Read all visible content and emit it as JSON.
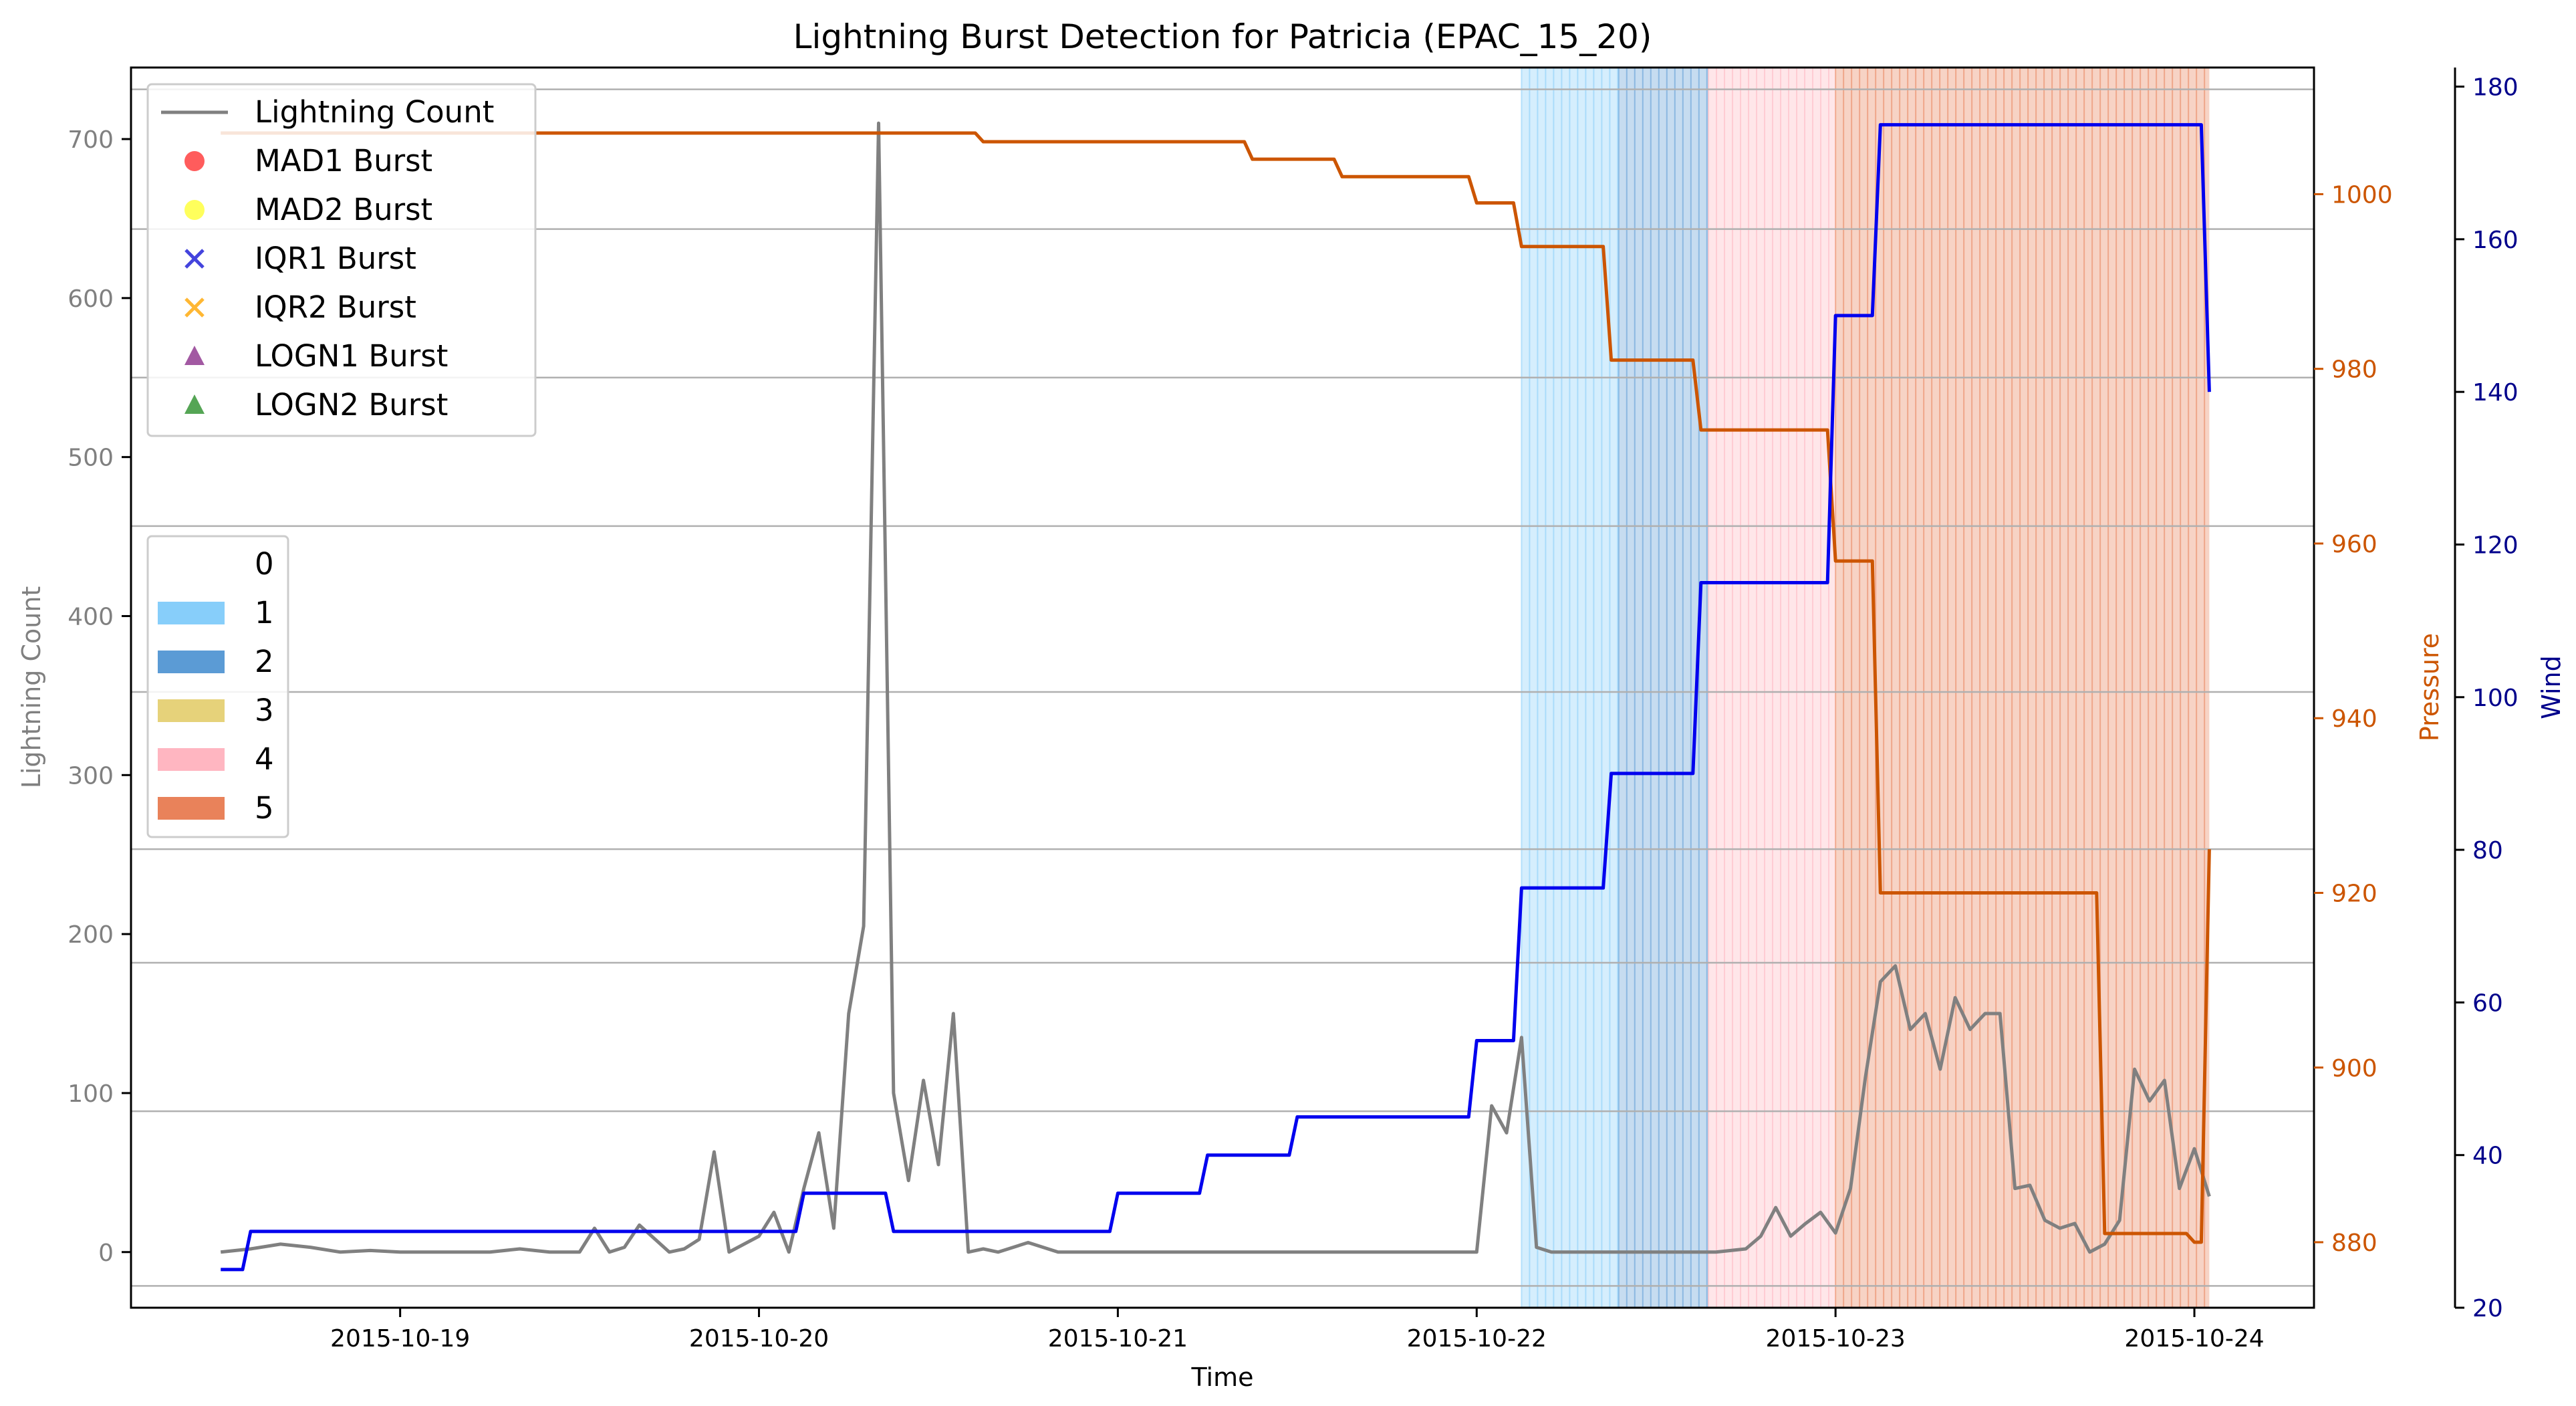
{
  "chart_data": {
    "type": "line",
    "title": "Lightning Burst Detection for Patricia (EPAC_15_20)",
    "xlabel": "Time",
    "ylabel_left": "Lightning Count",
    "ylabel_pressure": "Pressure",
    "ylabel_wind": "Wind",
    "x_range": [
      "2015-10-18 06:00",
      "2015-10-24 08:00"
    ],
    "x_ticks": [
      {
        "label": "2015-10-19",
        "value": "2015-10-19T00:00"
      },
      {
        "label": "2015-10-20",
        "value": "2015-10-20T00:00"
      },
      {
        "label": "2015-10-21",
        "value": "2015-10-21T00:00"
      },
      {
        "label": "2015-10-22",
        "value": "2015-10-22T00:00"
      },
      {
        "label": "2015-10-23",
        "value": "2015-10-23T00:00"
      },
      {
        "label": "2015-10-24",
        "value": "2015-10-24T00:00"
      }
    ],
    "left_axis": {
      "range": [
        -35,
        745
      ],
      "ticks": [
        0,
        100,
        200,
        300,
        400,
        500,
        600,
        700
      ]
    },
    "pressure_axis": {
      "range": [
        872.5,
        1014.5
      ],
      "ticks": [
        880,
        900,
        920,
        940,
        960,
        980,
        1000
      ]
    },
    "wind_axis": {
      "range": [
        20,
        182.5
      ],
      "ticks": [
        20,
        40,
        60,
        80,
        100,
        120,
        140,
        160,
        180
      ]
    },
    "grid_pressure": [
      875,
      895,
      912,
      925,
      943,
      962,
      979,
      996,
      1012
    ],
    "colors": {
      "lightning": "#808080",
      "pressure": "#cc5500",
      "wind": "#0000ee",
      "wind_axis": "#00008b",
      "cat1": "#87cefa",
      "cat2": "#5b9bd5",
      "cat3": "#e6d27a",
      "cat4": "#ffb6c1",
      "cat5": "#e9825a",
      "grid": "#b0b0b0"
    },
    "category_shading": [
      {
        "category": 1,
        "start": "2015-10-22T03:00",
        "end": "2015-10-22T09:30"
      },
      {
        "category": 2,
        "start": "2015-10-22T09:30",
        "end": "2015-10-22T15:30"
      },
      {
        "category": 4,
        "start": "2015-10-22T15:30",
        "end": "2015-10-23T00:00"
      },
      {
        "category": 5,
        "start": "2015-10-23T00:00",
        "end": "2015-10-24T01:00"
      }
    ],
    "legend_series": [
      {
        "label": "Lightning Count",
        "marker": "line",
        "color": "#808080"
      },
      {
        "label": "MAD1 Burst",
        "marker": "circle",
        "color": "#ff3333"
      },
      {
        "label": "MAD2 Burst",
        "marker": "circle",
        "color": "#ffff33"
      },
      {
        "label": "IQR1 Burst",
        "marker": "x",
        "color": "#4444dd"
      },
      {
        "label": "IQR2 Burst",
        "marker": "x",
        "color": "#ffb733"
      },
      {
        "label": "LOGN1 Burst",
        "marker": "triangle",
        "color": "#8b2f8b"
      },
      {
        "label": "LOGN2 Burst",
        "marker": "triangle",
        "color": "#2a8f2a"
      }
    ],
    "legend_categories": [
      {
        "label": "0",
        "color": "#ffffff"
      },
      {
        "label": "1",
        "color": "#87cefa"
      },
      {
        "label": "2",
        "color": "#5b9bd5"
      },
      {
        "label": "3",
        "color": "#e6d27a"
      },
      {
        "label": "4",
        "color": "#ffb6c1"
      },
      {
        "label": "5",
        "color": "#e9825a"
      }
    ],
    "series": [
      {
        "name": "Lightning Count",
        "axis": "left",
        "x": [
          "2015-10-18T12:00",
          "2015-10-18T14:00",
          "2015-10-18T16:00",
          "2015-10-18T18:00",
          "2015-10-18T20:00",
          "2015-10-18T22:00",
          "2015-10-19T00:00",
          "2015-10-19T02:00",
          "2015-10-19T04:00",
          "2015-10-19T06:00",
          "2015-10-19T08:00",
          "2015-10-19T10:00",
          "2015-10-19T12:00",
          "2015-10-19T13:00",
          "2015-10-19T14:00",
          "2015-10-19T15:00",
          "2015-10-19T16:00",
          "2015-10-19T18:00",
          "2015-10-19T19:00",
          "2015-10-19T20:00",
          "2015-10-19T21:00",
          "2015-10-19T22:00",
          "2015-10-20T00:00",
          "2015-10-20T01:00",
          "2015-10-20T02:00",
          "2015-10-20T03:00",
          "2015-10-20T04:00",
          "2015-10-20T05:00",
          "2015-10-20T06:00",
          "2015-10-20T07:00",
          "2015-10-20T08:00",
          "2015-10-20T09:00",
          "2015-10-20T10:00",
          "2015-10-20T11:00",
          "2015-10-20T12:00",
          "2015-10-20T13:00",
          "2015-10-20T14:00",
          "2015-10-20T15:00",
          "2015-10-20T16:00",
          "2015-10-20T18:00",
          "2015-10-20T20:00",
          "2015-10-21T00:00",
          "2015-10-21T06:00",
          "2015-10-21T12:00",
          "2015-10-21T18:00",
          "2015-10-22T00:00",
          "2015-10-22T01:00",
          "2015-10-22T02:00",
          "2015-10-22T03:00",
          "2015-10-22T04:00",
          "2015-10-22T05:00",
          "2015-10-22T08:00",
          "2015-10-22T12:00",
          "2015-10-22T16:00",
          "2015-10-22T18:00",
          "2015-10-22T19:00",
          "2015-10-22T20:00",
          "2015-10-22T21:00",
          "2015-10-22T22:00",
          "2015-10-22T23:00",
          "2015-10-23T00:00",
          "2015-10-23T01:00",
          "2015-10-23T02:00",
          "2015-10-23T03:00",
          "2015-10-23T04:00",
          "2015-10-23T05:00",
          "2015-10-23T06:00",
          "2015-10-23T07:00",
          "2015-10-23T08:00",
          "2015-10-23T09:00",
          "2015-10-23T10:00",
          "2015-10-23T11:00",
          "2015-10-23T12:00",
          "2015-10-23T13:00",
          "2015-10-23T14:00",
          "2015-10-23T15:00",
          "2015-10-23T16:00",
          "2015-10-23T17:00",
          "2015-10-23T18:00",
          "2015-10-23T19:00",
          "2015-10-23T20:00",
          "2015-10-23T21:00",
          "2015-10-23T22:00",
          "2015-10-23T23:00",
          "2015-10-24T00:00",
          "2015-10-24T01:00"
        ],
        "values": [
          0,
          2,
          5,
          3,
          0,
          1,
          0,
          0,
          0,
          0,
          2,
          0,
          0,
          15,
          0,
          3,
          17,
          0,
          2,
          8,
          63,
          0,
          10,
          25,
          0,
          40,
          75,
          15,
          150,
          205,
          710,
          100,
          45,
          108,
          55,
          150,
          0,
          2,
          0,
          6,
          0,
          0,
          0,
          0,
          0,
          0,
          92,
          75,
          135,
          3,
          0,
          0,
          0,
          0,
          2,
          10,
          28,
          10,
          18,
          25,
          12,
          40,
          110,
          170,
          180,
          140,
          150,
          115,
          160,
          140,
          150,
          150,
          40,
          42,
          20,
          15,
          18,
          0,
          5,
          20,
          115,
          95,
          108,
          40,
          65,
          35
        ]
      },
      {
        "name": "Pressure",
        "axis": "pressure",
        "x": [
          "2015-10-18T12:00",
          "2015-10-20T12:00",
          "2015-10-20T15:00",
          "2015-10-21T00:00",
          "2015-10-21T09:00",
          "2015-10-21T15:00",
          "2015-10-22T00:00",
          "2015-10-22T03:00",
          "2015-10-22T09:00",
          "2015-10-22T15:00",
          "2015-10-23T00:00",
          "2015-10-23T03:00",
          "2015-10-23T18:00",
          "2015-10-24T00:00",
          "2015-10-24T01:00"
        ],
        "values": [
          1007,
          1007,
          1006,
          1006,
          1004,
          1002,
          999,
          994,
          981,
          973,
          958,
          920,
          881,
          880,
          925
        ]
      },
      {
        "name": "Wind",
        "axis": "wind",
        "x": [
          "2015-10-18T12:00",
          "2015-10-18T14:00",
          "2015-10-20T03:00",
          "2015-10-20T09:00",
          "2015-10-21T00:00",
          "2015-10-21T06:00",
          "2015-10-21T12:00",
          "2015-10-22T00:00",
          "2015-10-22T03:00",
          "2015-10-22T09:00",
          "2015-10-22T15:00",
          "2015-10-23T00:00",
          "2015-10-23T03:00",
          "2015-10-24T00:00",
          "2015-10-24T01:00"
        ],
        "values": [
          25,
          30,
          35,
          30,
          35,
          40,
          45,
          55,
          75,
          90,
          115,
          150,
          175,
          175,
          140
        ]
      }
    ]
  }
}
